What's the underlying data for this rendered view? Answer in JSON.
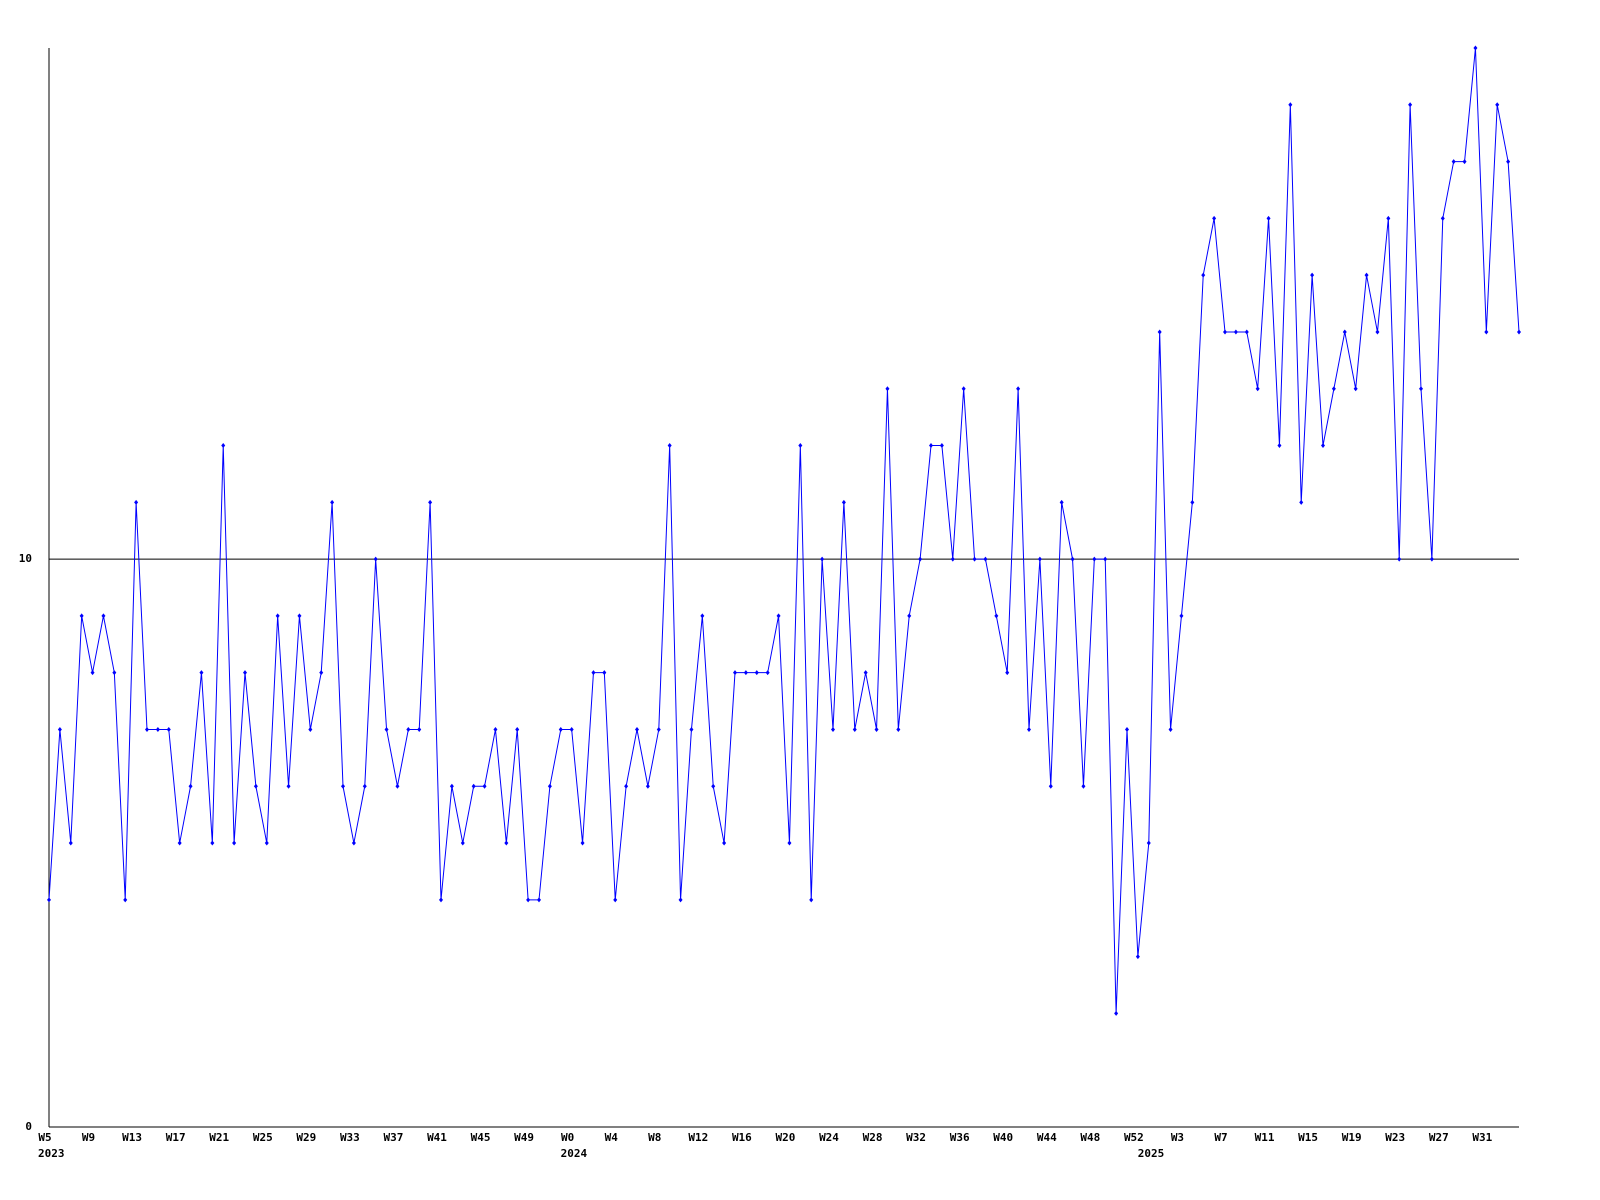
{
  "chart_data": {
    "type": "line",
    "color": "#0000ff",
    "categories": [
      "W5",
      null,
      null,
      null,
      "W9",
      null,
      null,
      null,
      "W13",
      null,
      null,
      null,
      "W17",
      null,
      null,
      null,
      "W21",
      null,
      null,
      null,
      "W25",
      null,
      null,
      null,
      "W29",
      null,
      null,
      null,
      "W33",
      null,
      null,
      null,
      "W37",
      null,
      null,
      null,
      "W41",
      null,
      null,
      null,
      "W45",
      null,
      null,
      null,
      "W49",
      null,
      null,
      null,
      "W0",
      null,
      null,
      null,
      "W4",
      null,
      null,
      null,
      "W8",
      null,
      null,
      null,
      "W12",
      null,
      null,
      null,
      "W16",
      null,
      null,
      null,
      "W20",
      null,
      null,
      null,
      "W24",
      null,
      null,
      null,
      "W28",
      null,
      null,
      null,
      "W32",
      null,
      null,
      null,
      "W36",
      null,
      null,
      null,
      "W40",
      null,
      null,
      null,
      "W44",
      null,
      null,
      null,
      "W48",
      null,
      null,
      null,
      "W52",
      null,
      null,
      null,
      "W3",
      null,
      null,
      null,
      "W7",
      null,
      null,
      null,
      "W11",
      null,
      null,
      null,
      "W15",
      null,
      null,
      null,
      "W19",
      null,
      null,
      null,
      "W23",
      null,
      null,
      null,
      "W27",
      null,
      null,
      null,
      "W31",
      null,
      null,
      null
    ],
    "category_years": [
      "2023",
      null,
      null,
      null,
      null,
      null,
      null,
      null,
      null,
      null,
      null,
      null,
      null,
      null,
      null,
      null,
      null,
      null,
      null,
      null,
      null,
      null,
      null,
      null,
      null,
      null,
      null,
      null,
      null,
      null,
      null,
      null,
      null,
      null,
      null,
      null,
      null,
      null,
      null,
      null,
      null,
      null,
      null,
      null,
      null,
      null,
      null,
      null,
      "2024",
      null,
      null,
      null,
      null,
      null,
      null,
      null,
      null,
      null,
      null,
      null,
      null,
      null,
      null,
      null,
      null,
      null,
      null,
      null,
      null,
      null,
      null,
      null,
      null,
      null,
      null,
      null,
      null,
      null,
      null,
      null,
      null,
      null,
      null,
      null,
      null,
      null,
      null,
      null,
      null,
      null,
      null,
      null,
      null,
      null,
      null,
      null,
      null,
      null,
      null,
      null,
      null,
      "2025",
      null,
      null,
      null,
      null,
      null,
      null,
      null,
      null,
      null,
      null,
      null,
      null,
      null,
      null,
      null,
      null,
      null,
      null,
      null,
      null,
      null,
      null,
      null,
      null,
      null,
      null,
      null,
      null,
      null,
      null,
      null,
      null,
      null,
      null
    ],
    "values": [
      4,
      7,
      5,
      9,
      8,
      9,
      8,
      4,
      11,
      7,
      7,
      7,
      5,
      6,
      8,
      5,
      12,
      5,
      8,
      6,
      5,
      9,
      6,
      9,
      7,
      8,
      11,
      6,
      5,
      6,
      10,
      7,
      6,
      7,
      7,
      11,
      4,
      6,
      5,
      6,
      6,
      7,
      5,
      7,
      4,
      4,
      6,
      7,
      7,
      5,
      8,
      8,
      4,
      6,
      7,
      6,
      7,
      12,
      4,
      7,
      9,
      6,
      5,
      8,
      8,
      8,
      8,
      9,
      5,
      12,
      4,
      10,
      7,
      11,
      7,
      8,
      7,
      13,
      7,
      9,
      10,
      12,
      12,
      10,
      13,
      10,
      10,
      9,
      8,
      13,
      7,
      10,
      6,
      11,
      10,
      6,
      10,
      10,
      2,
      7,
      3,
      5,
      14,
      7,
      9,
      11,
      15,
      16,
      14,
      14,
      14,
      13,
      16,
      12,
      18,
      11,
      15,
      12,
      13,
      14,
      13,
      15,
      14,
      16,
      10,
      18,
      13,
      10,
      16,
      17,
      17,
      19,
      14,
      18,
      17,
      14
    ],
    "ylim": [
      0,
      19
    ],
    "yticks": [
      0,
      10
    ],
    "grid": true
  }
}
